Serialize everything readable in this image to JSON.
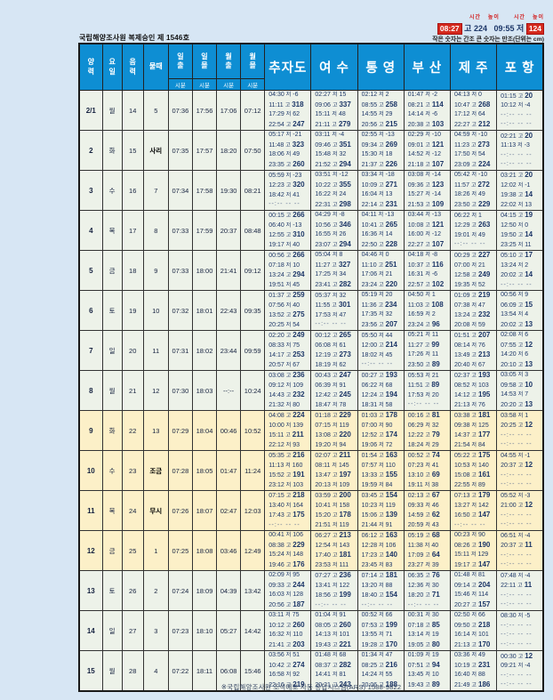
{
  "header": {
    "approval": "국립해양조사원 복제승인 제 1546호",
    "legend": {
      "mini_labels": [
        "시간",
        "높이",
        "시간",
        "높이"
      ],
      "high_time": "08:27",
      "high_rest": "고 224",
      "low_lead": "09:55 저",
      "low_height": "124",
      "note": "작은 숫자는 간조   큰 숫자는 만조(단위는 cm)"
    }
  },
  "colors": {
    "header_blue": "#0e8ed3",
    "row_green": "#edf2e9",
    "row_cream": "#fcf0c8",
    "accent_red": "#d42a1e",
    "text_navy": "#1c3668"
  },
  "table": {
    "small_headers": [
      "양력",
      "요일",
      "음력",
      "물때",
      "일출",
      "일몰",
      "월출",
      "월몰"
    ],
    "sub_headers": [
      "시분",
      "시분",
      "시분",
      "시분"
    ],
    "locations": [
      "추자도",
      "여 수",
      "통 영",
      "부 산",
      "제 주",
      "포 항"
    ],
    "rows": [
      {
        "date": "2/1",
        "dow": "월",
        "lunar": "14",
        "multtae": "5",
        "sunrise": "07:36",
        "sunset": "17:56",
        "moonrise": "17:06",
        "moonset": "07:12",
        "highlight": false,
        "tides": [
          [
            "04:30 저 -6",
            "11:11 고 318",
            "17:29 저 62",
            "22:54 고 247"
          ],
          [
            "02:27 저 15",
            "09:06 고 337",
            "15:11 저 48",
            "21:11 고 279"
          ],
          [
            "02:12 저 2",
            "08:55 고 258",
            "14:55 저 29",
            "20:56 고 215"
          ],
          [
            "01:47 저 -2",
            "08:21 고 114",
            "14:14 저 -6",
            "20:38 고 103"
          ],
          [
            "04:13 저 0",
            "10:47 고 268",
            "17:12 저 64",
            "22:27 고 212"
          ],
          [
            "01:15 고 20",
            "10:12 저 -4",
            "--:-- -- --",
            "--:-- -- --"
          ]
        ]
      },
      {
        "date": "2",
        "dow": "화",
        "lunar": "15",
        "multtae": "사리",
        "sunrise": "07:35",
        "sunset": "17:57",
        "moonrise": "18:20",
        "moonset": "07:50",
        "highlight": false,
        "tides": [
          [
            "05:17 저 -21",
            "11:48 고 323",
            "18:06 저 49",
            "23:35 고 260"
          ],
          [
            "03:11 저 -4",
            "09:46 고 351",
            "15:48 저 32",
            "21:52 고 294"
          ],
          [
            "02:55 저 -13",
            "09:34 고 269",
            "15:30 저 18",
            "21:37 고 226"
          ],
          [
            "02:29 저 -10",
            "09:01 고 121",
            "14:52 저 -12",
            "21:18 고 107"
          ],
          [
            "04:59 저 -10",
            "11:23 고 273",
            "17:50 저 54",
            "23:09 고 224"
          ],
          [
            "02:21 고 20",
            "11:13 저 -3",
            "--:-- -- --",
            "--:-- -- --"
          ]
        ]
      },
      {
        "date": "3",
        "dow": "수",
        "lunar": "16",
        "multtae": "7",
        "sunrise": "07:34",
        "sunset": "17:58",
        "moonrise": "19:30",
        "moonset": "08:21",
        "highlight": false,
        "tides": [
          [
            "05:59 저 -23",
            "12:23 고 320",
            "18:42 저 41",
            "--:-- -- --"
          ],
          [
            "03:51 저 -12",
            "10:22 고 355",
            "16:22 저 24",
            "22:31 고 298"
          ],
          [
            "03:34 저 -18",
            "10:09 고 271",
            "16:04 저 13",
            "22:14 고 231"
          ],
          [
            "03:08 저 -14",
            "09:36 고 123",
            "15:27 저 -14",
            "21:53 고 109"
          ],
          [
            "05:42 저 -10",
            "11:57 고 272",
            "18:26 저 49",
            "23:50 고 229"
          ],
          [
            "03:21 고 20",
            "12:02 저 -1",
            "19:38 고 14",
            "22:02 저 13"
          ]
        ]
      },
      {
        "date": "4",
        "dow": "목",
        "lunar": "17",
        "multtae": "8",
        "sunrise": "07:33",
        "sunset": "17:59",
        "moonrise": "20:37",
        "moonset": "08:48",
        "highlight": false,
        "tides": [
          [
            "00:15 고 266",
            "06:40 저 -13",
            "12:55 고 310",
            "19:17 저 40"
          ],
          [
            "04:29 저 -8",
            "10:56 고 346",
            "16:55 저 26",
            "23:07 고 294"
          ],
          [
            "04:11 저 -13",
            "10:41 고 265",
            "16:36 저 14",
            "22:50 고 228"
          ],
          [
            "03:44 저 -13",
            "10:08 고 121",
            "16:00 저 -12",
            "22:27 고 107"
          ],
          [
            "06:22 저 1",
            "12:29 고 263",
            "19:01 저 49",
            "--:-- -- --"
          ],
          [
            "04:15 고 19",
            "12:50 저 0",
            "19:50 고 14",
            "23:25 저 11"
          ]
        ]
      },
      {
        "date": "5",
        "dow": "금",
        "lunar": "18",
        "multtae": "9",
        "sunrise": "07:33",
        "sunset": "18:00",
        "moonrise": "21:41",
        "moonset": "09:12",
        "highlight": false,
        "tides": [
          [
            "00:56 고 266",
            "07:18 저 10",
            "13:24 고 294",
            "19:51 저 45"
          ],
          [
            "05:04 저 8",
            "11:27 고 327",
            "17:25 저 34",
            "23:41 고 282"
          ],
          [
            "04:46 저 0",
            "11:10 고 251",
            "17:06 저 21",
            "23:24 고 220"
          ],
          [
            "04:18 저 -8",
            "10:37 고 116",
            "16:31 저 -6",
            "22:57 고 102"
          ],
          [
            "00:29 고 227",
            "07:00 저 21",
            "12:58 고 249",
            "19:35 저 52"
          ],
          [
            "05:10 고 17",
            "13:24 저 2",
            "20:02 고 14",
            "--:-- -- --"
          ]
        ]
      },
      {
        "date": "6",
        "dow": "토",
        "lunar": "19",
        "multtae": "10",
        "sunrise": "07:32",
        "sunset": "18:01",
        "moonrise": "22:43",
        "moonset": "09:35",
        "highlight": false,
        "tides": [
          [
            "01:37 고 259",
            "07:56 저 40",
            "13:52 고 275",
            "20:25 저 54"
          ],
          [
            "05:37 저 32",
            "11:55 고 301",
            "17:53 저 47",
            "--:-- -- --"
          ],
          [
            "05:19 저 20",
            "11:36 고 234",
            "17:35 저 32",
            "23:56 고 207"
          ],
          [
            "04:50 저 1",
            "11:03 고 108",
            "16:59 저 2",
            "23:24 고 96"
          ],
          [
            "01:09 고 219",
            "07:38 저 47",
            "13:24 고 232",
            "20:08 저 59"
          ],
          [
            "00:56 저 9",
            "06:09 고 15",
            "13:54 저 4",
            "20:02 고 13"
          ]
        ]
      },
      {
        "date": "7",
        "dow": "일",
        "lunar": "20",
        "multtae": "11",
        "sunrise": "07:31",
        "sunset": "18:02",
        "moonrise": "23:44",
        "moonset": "09:59",
        "highlight": false,
        "tides": [
          [
            "02:20 고 249",
            "08:33 저 75",
            "14:17 고 253",
            "20:57 저 67"
          ],
          [
            "00:12 고 265",
            "06:08 저 61",
            "12:19 고 273",
            "18:19 저 62"
          ],
          [
            "05:50 저 44",
            "12:00 고 214",
            "18:02 저 45",
            "--:-- -- --"
          ],
          [
            "05:21 저 11",
            "11:27 고 99",
            "17:26 저 11",
            "23:50 고 89"
          ],
          [
            "01:51 고 207",
            "08:14 저 76",
            "13:49 고 213",
            "20:40 저 67"
          ],
          [
            "02:08 저 6",
            "07:55 고 12",
            "14:20 저 6",
            "20:10 고 13"
          ]
        ]
      },
      {
        "date": "8",
        "dow": "월",
        "lunar": "21",
        "multtae": "12",
        "sunrise": "07:30",
        "sunset": "18:03",
        "moonrise": "--:--",
        "moonset": "10:24",
        "highlight": false,
        "tides": [
          [
            "03:08 고 236",
            "09:12 저 109",
            "14:43 고 232",
            "21:32 저 80"
          ],
          [
            "00:43 고 247",
            "06:39 저 91",
            "12:42 고 245",
            "18:47 저 78"
          ],
          [
            "00:27 고 193",
            "06:22 저 68",
            "12:24 고 194",
            "18:31 저 58"
          ],
          [
            "05:53 저 21",
            "11:51 고 89",
            "17:53 저 20",
            "--:-- -- --"
          ],
          [
            "02:37 고 193",
            "08:52 저 103",
            "14:12 고 195",
            "21:13 저 76"
          ],
          [
            "03:05 저 3",
            "09:58 고 10",
            "14:53 저 7",
            "20:20 고 13"
          ]
        ]
      },
      {
        "date": "9",
        "dow": "화",
        "lunar": "22",
        "multtae": "13",
        "sunrise": "07:29",
        "sunset": "18:04",
        "moonrise": "00:46",
        "moonset": "10:52",
        "highlight": true,
        "tides": [
          [
            "04:08 고 224",
            "10:00 저 139",
            "15:11 고 211",
            "22:12 저 93"
          ],
          [
            "01:18 고 229",
            "07:15 저 119",
            "13:08 고 220",
            "19:20 저 94"
          ],
          [
            "01:03 고 178",
            "07:00 저 90",
            "12:52 고 174",
            "19:06 저 72"
          ],
          [
            "00:16 고 81",
            "06:29 저 32",
            "12:22 고 79",
            "18:24 저 29"
          ],
          [
            "03:38 고 181",
            "09:38 저 125",
            "14:37 고 177",
            "21:54 저 84"
          ],
          [
            "03:58 저 1",
            "20:25 고 12",
            "--:-- -- --",
            "--:-- -- --"
          ]
        ]
      },
      {
        "date": "10",
        "dow": "수",
        "lunar": "23",
        "multtae": "조금",
        "sunrise": "07:28",
        "sunset": "18:05",
        "moonrise": "01:47",
        "moonset": "11:24",
        "highlight": true,
        "tides": [
          [
            "05:35 고 216",
            "11:13 저 160",
            "15:52 고 191",
            "23:12 저 103"
          ],
          [
            "02:07 고 211",
            "08:11 저 145",
            "13:47 고 197",
            "20:13 저 109"
          ],
          [
            "01:54 고 163",
            "07:57 저 110",
            "13:33 고 155",
            "19:59 저 84"
          ],
          [
            "00:52 고 74",
            "07:23 저 41",
            "13:10 고 69",
            "19:11 저 38"
          ],
          [
            "05:22 고 175",
            "10:53 저 140",
            "15:08 고 161",
            "22:55 저 89"
          ],
          [
            "04:55 저 -1",
            "20:37 고 12",
            "--:-- -- --",
            "--:-- -- --"
          ]
        ]
      },
      {
        "date": "11",
        "dow": "목",
        "lunar": "24",
        "multtae": "무시",
        "sunrise": "07:26",
        "sunset": "18:07",
        "moonrise": "02:47",
        "moonset": "12:03",
        "highlight": true,
        "tides": [
          [
            "07:15 고 218",
            "13:40 저 164",
            "17:43 고 175",
            "--:-- -- --"
          ],
          [
            "03:59 고 200",
            "10:41 저 158",
            "15:20 고 178",
            "21:51 저 119"
          ],
          [
            "03:45 고 154",
            "10:23 저 119",
            "15:06 고 139",
            "21:44 저 91"
          ],
          [
            "02:13 고 67",
            "09:33 저 46",
            "14:59 고 62",
            "20:59 저 43"
          ],
          [
            "07:13 고 179",
            "13:27 저 142",
            "16:50 고 147",
            "--:-- -- --"
          ],
          [
            "05:52 저 -3",
            "21:00 고 12",
            "--:-- -- --",
            "--:-- -- --"
          ]
        ]
      },
      {
        "date": "12",
        "dow": "금",
        "lunar": "25",
        "multtae": "1",
        "sunrise": "07:25",
        "sunset": "18:08",
        "moonrise": "03:46",
        "moonset": "12:49",
        "highlight": true,
        "tides": [
          [
            "00:41 저 106",
            "08:38 고 229",
            "15:24 저 148",
            "19:46 고 176"
          ],
          [
            "06:27 고 213",
            "12:54 저 143",
            "17:40 고 181",
            "23:53 저 111"
          ],
          [
            "06:12 고 163",
            "12:28 저 106",
            "17:23 고 140",
            "23:45 저 83"
          ],
          [
            "05:19 고 68",
            "11:38 저 40",
            "17:09 고 64",
            "23:27 저 39"
          ],
          [
            "00:23 저 90",
            "08:26 고 190",
            "15:11 저 129",
            "19:17 고 147"
          ],
          [
            "06:51 저 -4",
            "20:37 고 11",
            "--:-- -- --",
            "--:-- -- --"
          ]
        ]
      },
      {
        "date": "13",
        "dow": "토",
        "lunar": "26",
        "multtae": "2",
        "sunrise": "07:24",
        "sunset": "18:09",
        "moonrise": "04:39",
        "moonset": "13:42",
        "highlight": false,
        "tides": [
          [
            "02:09 저 95",
            "09:33 고 244",
            "16:03 저 128",
            "20:56 고 187"
          ],
          [
            "07:27 고 236",
            "13:41 저 122",
            "18:56 고 199",
            "--:-- -- --"
          ],
          [
            "07:14 고 181",
            "13:20 저 88",
            "18:40 고 154",
            "--:-- -- --"
          ],
          [
            "06:35 고 76",
            "12:36 저 30",
            "18:20 고 71",
            "--:-- -- --"
          ],
          [
            "01:48 저 81",
            "09:14 고 204",
            "15:46 저 114",
            "20:27 고 157"
          ],
          [
            "07:48 저 -4",
            "22:11 고 11",
            "--:-- -- --",
            "--:-- -- --"
          ]
        ]
      },
      {
        "date": "14",
        "dow": "일",
        "lunar": "27",
        "multtae": "3",
        "sunrise": "07:23",
        "sunset": "18:10",
        "moonrise": "05:27",
        "moonset": "14:42",
        "highlight": false,
        "tides": [
          [
            "03:11 저 75",
            "10:12 고 260",
            "16:32 저 110",
            "21:41 고 203"
          ],
          [
            "01:04 저 91",
            "08:05 고 260",
            "14:13 저 101",
            "19:43 고 221"
          ],
          [
            "00:52 저 66",
            "07:53 고 199",
            "13:55 저 71",
            "19:28 고 170"
          ],
          [
            "00:31 저 30",
            "07:18 고 85",
            "13:14 저 19",
            "19:05 고 80"
          ],
          [
            "02:50 저 66",
            "09:50 고 218",
            "16:14 저 101",
            "21:13 고 170"
          ],
          [
            "08:30 저 -5",
            "--:-- -- --",
            "--:-- -- --",
            "--:-- -- --"
          ]
        ]
      },
      {
        "date": "15",
        "dow": "월",
        "lunar": "28",
        "multtae": "4",
        "sunrise": "07:22",
        "sunset": "18:11",
        "moonrise": "06:08",
        "moonset": "15:46",
        "highlight": false,
        "tides": [
          [
            "03:56 저 51",
            "10:42 고 274",
            "16:58 저 92",
            "22:16 고 219"
          ],
          [
            "01:48 저 68",
            "08:37 고 282",
            "14:41 저 81",
            "20:21 고 243"
          ],
          [
            "01:34 저 47",
            "08:25 고 216",
            "14:24 저 55",
            "20:06 고 188"
          ],
          [
            "01:09 저 19",
            "07:51 고 94",
            "13:45 저 10",
            "19:43 고 89"
          ],
          [
            "03:36 저 49",
            "10:19 고 231",
            "16:40 저 88",
            "21:49 고 186"
          ],
          [
            "00:30 고 12",
            "09:21 저 -4",
            "--:-- -- --",
            "--:-- -- --"
          ]
        ]
      }
    ]
  },
  "footer": {
    "text": "※국립해양조사원 조석예보 자동 응답시스템(ARS) 1588-9822"
  }
}
